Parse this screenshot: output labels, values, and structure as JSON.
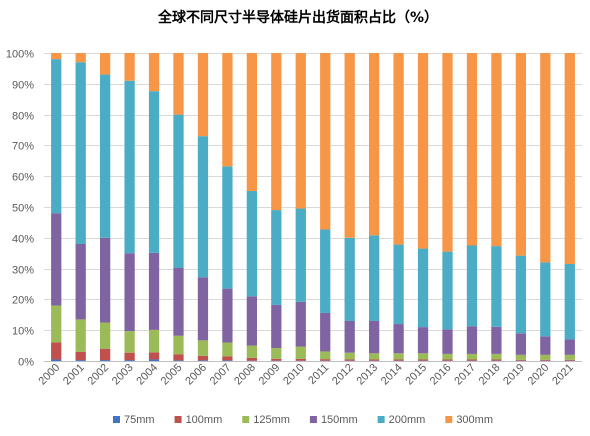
{
  "chart_data": {
    "type": "bar",
    "stacked": true,
    "title": "全球不同尺寸半导体硅片出货面积占比（%）",
    "categories": [
      "2000",
      "2001",
      "2002",
      "2003",
      "2004",
      "2005",
      "2006",
      "2007",
      "2008",
      "2009",
      "2010",
      "2011",
      "2012",
      "2013",
      "2014",
      "2015",
      "2016",
      "2017",
      "2018",
      "2019",
      "2020",
      "2021"
    ],
    "ylim": [
      0,
      100
    ],
    "yticks": [
      "0%",
      "10%",
      "20%",
      "30%",
      "40%",
      "50%",
      "60%",
      "70%",
      "80%",
      "90%",
      "100%"
    ],
    "grid": true,
    "legend_position": "bottom",
    "series": [
      {
        "name": "75mm",
        "color": "#4472C4",
        "values": [
          0.5,
          0.3,
          0.3,
          0.3,
          0.5,
          0.2,
          0.2,
          0.2,
          0.1,
          0.1,
          0.1,
          0.1,
          0.1,
          0.1,
          0.1,
          0.1,
          0.1,
          0.1,
          0.1,
          0.1,
          0.1,
          0.1
        ]
      },
      {
        "name": "100mm",
        "color": "#C0504D",
        "values": [
          5.5,
          2.7,
          3.7,
          2.4,
          2.3,
          2.0,
          1.5,
          1.3,
          0.9,
          0.6,
          0.6,
          0.5,
          0.4,
          0.4,
          0.4,
          0.4,
          0.4,
          0.4,
          0.4,
          0.3,
          0.3,
          0.3
        ]
      },
      {
        "name": "125mm",
        "color": "#9BBB59",
        "values": [
          12,
          10.5,
          8.5,
          7,
          7.3,
          6,
          5,
          4.5,
          4,
          3.5,
          4,
          2.5,
          2.2,
          2,
          2,
          2,
          1.8,
          1.8,
          1.8,
          1.6,
          1.6,
          1.6
        ]
      },
      {
        "name": "150mm",
        "color": "#8064A2",
        "values": [
          30,
          24.5,
          27.5,
          25.3,
          25,
          22,
          20.5,
          17.5,
          16,
          14,
          14.5,
          12.5,
          10.3,
          10.5,
          9.5,
          8.5,
          8,
          9,
          8.8,
          7,
          6,
          5
        ]
      },
      {
        "name": "200mm",
        "color": "#4BACC6",
        "values": [
          50,
          59,
          53,
          56,
          52.5,
          49.8,
          45.8,
          39.7,
          34.2,
          30.8,
          30.3,
          27.1,
          27,
          27.8,
          25.8,
          25.5,
          25.2,
          26.2,
          26.2,
          25.2,
          24,
          24.5
        ]
      },
      {
        "name": "300mm",
        "color": "#F79646",
        "values": [
          2,
          3,
          7,
          9,
          12.4,
          20,
          27,
          36.8,
          44.8,
          51,
          50.5,
          57.3,
          60,
          59.2,
          62.2,
          63.5,
          64.5,
          62.5,
          62.7,
          65.8,
          68,
          68.5
        ]
      }
    ]
  }
}
